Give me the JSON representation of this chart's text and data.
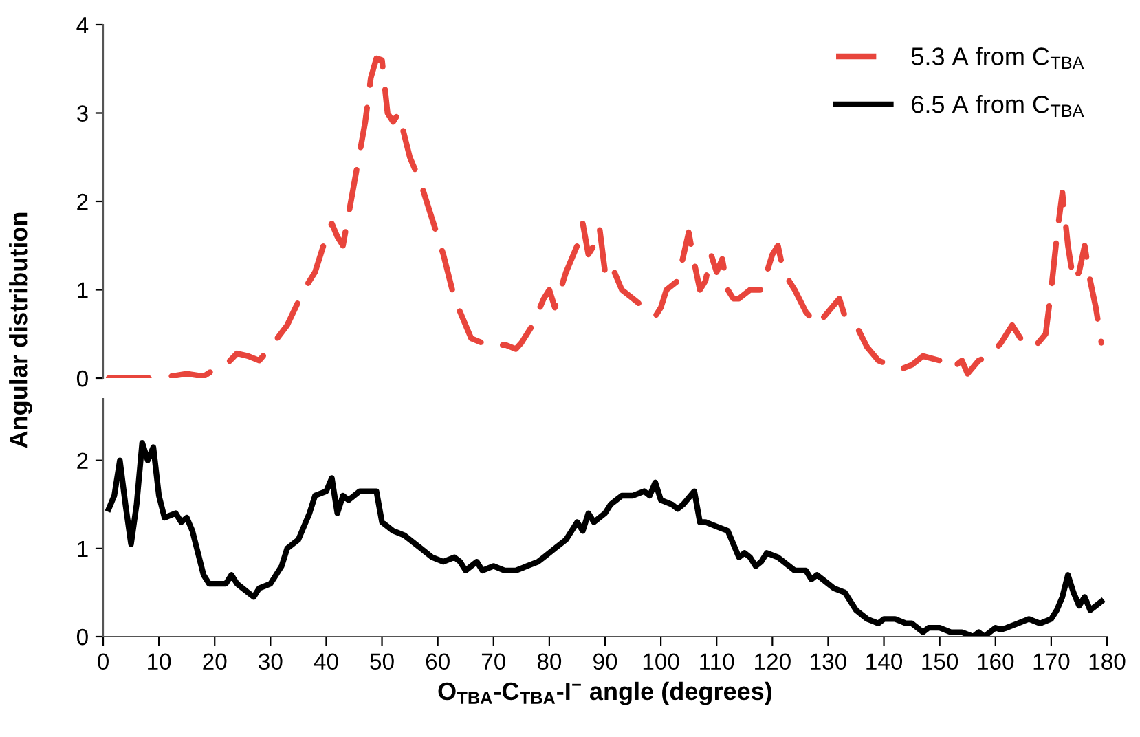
{
  "chart_data": [
    {
      "type": "line",
      "ylabel": "Angular distribution",
      "xlim": [
        0,
        180
      ],
      "ylim": [
        0,
        4
      ],
      "yticks": [
        0,
        1,
        2,
        3,
        4
      ],
      "tick_labels": "y",
      "legend": "top right",
      "grid": false,
      "series": [
        {
          "name": "5.3 A from C$_{TBA}$",
          "color": "#e8453c",
          "line_style": "dashed",
          "x": [
            1,
            5,
            10,
            12,
            15,
            18,
            20,
            22,
            24,
            26,
            28,
            30,
            33,
            36,
            38,
            40,
            41,
            42,
            43,
            45,
            47,
            48,
            49,
            50,
            51,
            52,
            53,
            55,
            57,
            59,
            61,
            63,
            65,
            66,
            68,
            70,
            72,
            74,
            75,
            77,
            79,
            80,
            81,
            83,
            85,
            86,
            87,
            88,
            89,
            90,
            91,
            93,
            95,
            97,
            99,
            100,
            101,
            103,
            105,
            106,
            107,
            108,
            109,
            110,
            111,
            112,
            113,
            114,
            116,
            118,
            120,
            121,
            122,
            124,
            126,
            128,
            130,
            132,
            133,
            135,
            137,
            139,
            141,
            143,
            145,
            147,
            150,
            152,
            154,
            155,
            157,
            159,
            161,
            162,
            163,
            165,
            167,
            169,
            170,
            171,
            172,
            173,
            174,
            175,
            176,
            177,
            178,
            179
          ],
          "values": [
            0,
            0,
            0,
            0.02,
            0.05,
            0.02,
            0.1,
            0.15,
            0.28,
            0.25,
            0.2,
            0.35,
            0.6,
            1.0,
            1.2,
            1.6,
            1.75,
            1.6,
            1.5,
            2.2,
            2.9,
            3.4,
            3.62,
            3.6,
            3.0,
            2.9,
            3.0,
            2.5,
            2.2,
            1.8,
            1.4,
            0.9,
            0.6,
            0.45,
            0.4,
            0.35,
            0.38,
            0.33,
            0.4,
            0.6,
            0.9,
            1.0,
            0.8,
            1.2,
            1.5,
            1.75,
            1.4,
            1.5,
            1.7,
            1.2,
            1.3,
            1.0,
            0.9,
            0.8,
            0.7,
            0.8,
            1.0,
            1.1,
            1.65,
            1.3,
            1.0,
            1.1,
            1.4,
            1.2,
            1.35,
            1.0,
            0.9,
            0.9,
            1.0,
            1.0,
            1.4,
            1.5,
            1.2,
            1.0,
            0.75,
            0.6,
            0.75,
            0.9,
            0.7,
            0.6,
            0.35,
            0.2,
            0.15,
            0.1,
            0.15,
            0.25,
            0.2,
            0.1,
            0.2,
            0.05,
            0.2,
            0.25,
            0.4,
            0.5,
            0.6,
            0.4,
            0.35,
            0.5,
            1.0,
            1.6,
            2.1,
            1.5,
            1.1,
            1.2,
            1.5,
            1.1,
            0.8,
            0.4
          ]
        }
      ]
    },
    {
      "type": "line",
      "xlabel": "O$_{TBA}$-C$_{TBA}$-I$^{−}$ angle (degrees)",
      "xlim": [
        0,
        180
      ],
      "xticks": [
        0,
        10,
        20,
        30,
        40,
        50,
        60,
        70,
        80,
        90,
        100,
        110,
        120,
        130,
        140,
        150,
        160,
        170,
        180
      ],
      "ylim": [
        0,
        2.7
      ],
      "yticks": [
        0,
        1,
        2
      ],
      "legend": "top right",
      "grid": false,
      "series": [
        {
          "name": "6.5 A from C$_{TBA}$",
          "color": "#000000",
          "line_style": "solid",
          "x": [
            1,
            2,
            3,
            4,
            5,
            6,
            7,
            8,
            9,
            10,
            11,
            13,
            14,
            15,
            16,
            18,
            19,
            21,
            22,
            23,
            24,
            26,
            27,
            28,
            30,
            32,
            33,
            35,
            37,
            38,
            40,
            41,
            42,
            43,
            44,
            46,
            48,
            49,
            50,
            52,
            54,
            55,
            57,
            59,
            61,
            63,
            64,
            65,
            67,
            68,
            70,
            72,
            74,
            76,
            78,
            79,
            81,
            83,
            84,
            85,
            86,
            87,
            88,
            90,
            91,
            92,
            93,
            95,
            97,
            98,
            99,
            100,
            102,
            103,
            104,
            106,
            107,
            108,
            110,
            112,
            114,
            115,
            116,
            117,
            118,
            119,
            121,
            122,
            124,
            126,
            127,
            128,
            130,
            131,
            133,
            135,
            137,
            139,
            140,
            142,
            144,
            145,
            147,
            148,
            150,
            152,
            154,
            156,
            157,
            158,
            159,
            160,
            161,
            162,
            164,
            166,
            168,
            170,
            171,
            172,
            173,
            174,
            175,
            176,
            177,
            178,
            179
          ],
          "values": [
            1.45,
            1.6,
            2.0,
            1.5,
            1.05,
            1.5,
            2.2,
            2.0,
            2.15,
            1.6,
            1.35,
            1.4,
            1.3,
            1.35,
            1.2,
            0.7,
            0.6,
            0.6,
            0.6,
            0.7,
            0.6,
            0.5,
            0.45,
            0.55,
            0.6,
            0.8,
            1.0,
            1.1,
            1.4,
            1.6,
            1.65,
            1.8,
            1.4,
            1.6,
            1.55,
            1.65,
            1.65,
            1.65,
            1.3,
            1.2,
            1.15,
            1.1,
            1.0,
            0.9,
            0.85,
            0.9,
            0.85,
            0.75,
            0.85,
            0.75,
            0.8,
            0.75,
            0.75,
            0.8,
            0.85,
            0.9,
            1.0,
            1.1,
            1.2,
            1.3,
            1.2,
            1.4,
            1.3,
            1.4,
            1.5,
            1.55,
            1.6,
            1.6,
            1.65,
            1.6,
            1.75,
            1.55,
            1.5,
            1.45,
            1.5,
            1.65,
            1.3,
            1.3,
            1.25,
            1.2,
            0.9,
            0.95,
            0.9,
            0.8,
            0.85,
            0.95,
            0.9,
            0.85,
            0.75,
            0.75,
            0.65,
            0.7,
            0.6,
            0.55,
            0.5,
            0.3,
            0.2,
            0.15,
            0.2,
            0.2,
            0.15,
            0.15,
            0.05,
            0.1,
            0.1,
            0.05,
            0.05,
            0.0,
            0.05,
            0.0,
            0.05,
            0.1,
            0.08,
            0.1,
            0.15,
            0.2,
            0.15,
            0.2,
            0.3,
            0.45,
            0.7,
            0.5,
            0.35,
            0.45,
            0.3,
            0.35,
            0.4
          ]
        }
      ]
    }
  ]
}
